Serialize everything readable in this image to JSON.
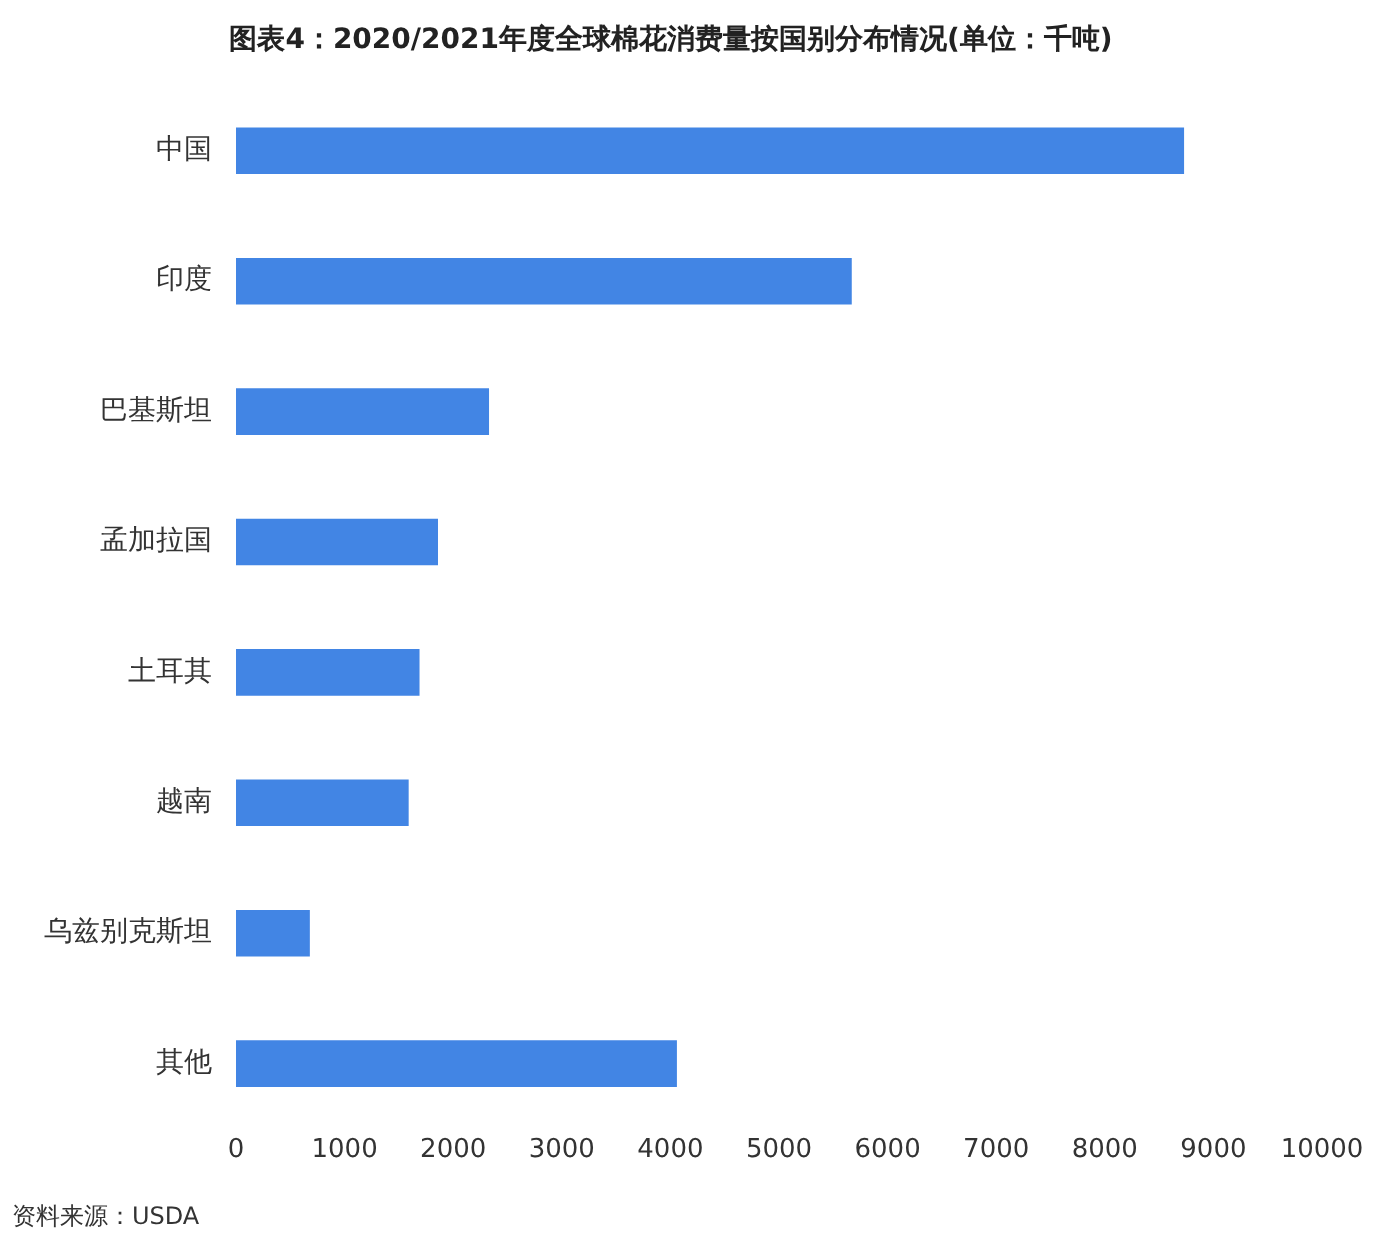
{
  "chart_data": {
    "type": "bar",
    "orientation": "horizontal",
    "title": "图表4：2020/2021年度全球棉花消费量按国别分布情况(单位：千吨)",
    "categories": [
      "中国",
      "印度",
      "巴基斯坦",
      "孟加拉国",
      "土耳其",
      "越南",
      "乌兹别克斯坦",
      "其他"
    ],
    "values": [
      8730,
      5670,
      2330,
      1860,
      1690,
      1590,
      680,
      4060
    ],
    "color": "#4285e4",
    "xlim": [
      0,
      10000
    ],
    "xticks": [
      0,
      1000,
      2000,
      3000,
      4000,
      5000,
      6000,
      7000,
      8000,
      9000,
      10000
    ],
    "grid": false,
    "legend": false,
    "annotations": [
      "资料来源：USDA"
    ]
  }
}
